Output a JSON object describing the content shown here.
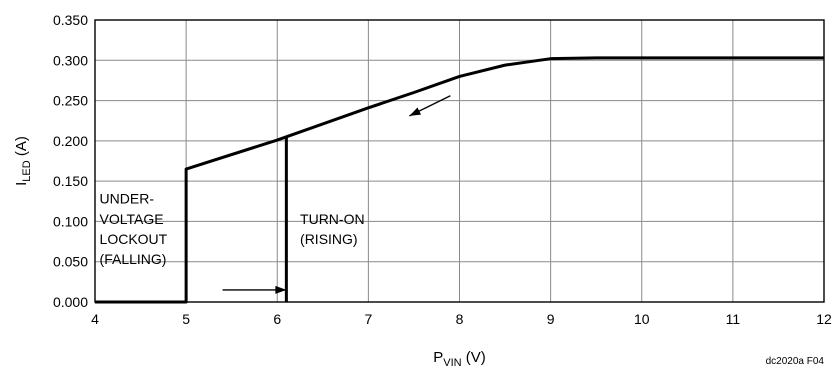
{
  "chart_data": {
    "type": "line",
    "xlabel": {
      "main": "P",
      "sub": "VIN",
      "suffix": " (V)"
    },
    "ylabel": {
      "main": "I",
      "sub": "LED",
      "suffix": " (A)"
    },
    "xlim": [
      4,
      12
    ],
    "ylim": [
      0,
      0.35
    ],
    "x_ticks": [
      "4",
      "5",
      "6",
      "7",
      "8",
      "9",
      "10",
      "11",
      "12"
    ],
    "y_ticks": [
      "0.000",
      "0.050",
      "0.100",
      "0.150",
      "0.200",
      "0.250",
      "0.300",
      "0.350"
    ],
    "grid": true,
    "series": [
      {
        "points": [
          [
            4,
            0.0
          ],
          [
            5,
            0.0
          ],
          [
            5,
            0.165
          ],
          [
            6,
            0.201
          ],
          [
            6.1,
            0.205
          ],
          [
            7,
            0.241
          ],
          [
            7.5,
            0.26
          ],
          [
            8,
            0.28
          ],
          [
            8.5,
            0.294
          ],
          [
            9,
            0.302
          ],
          [
            9.5,
            0.303
          ],
          [
            12,
            0.303
          ]
        ]
      },
      {
        "points": [
          [
            6.1,
            0.205
          ],
          [
            6.1,
            0.0
          ]
        ]
      }
    ],
    "annotations": [
      {
        "text": "UNDER-",
        "x": 4.05,
        "y": 0.122
      },
      {
        "text": "VOLTAGE",
        "x": 4.05,
        "y": 0.097
      },
      {
        "text": "LOCKOUT",
        "x": 4.05,
        "y": 0.072
      },
      {
        "text": "(FALLING)",
        "x": 4.05,
        "y": 0.047
      },
      {
        "text": "TURN-ON",
        "x": 6.25,
        "y": 0.097
      },
      {
        "text": "(RISING)",
        "x": 6.25,
        "y": 0.072
      }
    ],
    "arrows": [
      {
        "from": [
          5.4,
          0.015
        ],
        "to": [
          6.1,
          0.015
        ]
      },
      {
        "from": [
          7.9,
          0.256
        ],
        "to": [
          7.45,
          0.231
        ]
      }
    ],
    "figure_id": "dc2020a F04"
  }
}
